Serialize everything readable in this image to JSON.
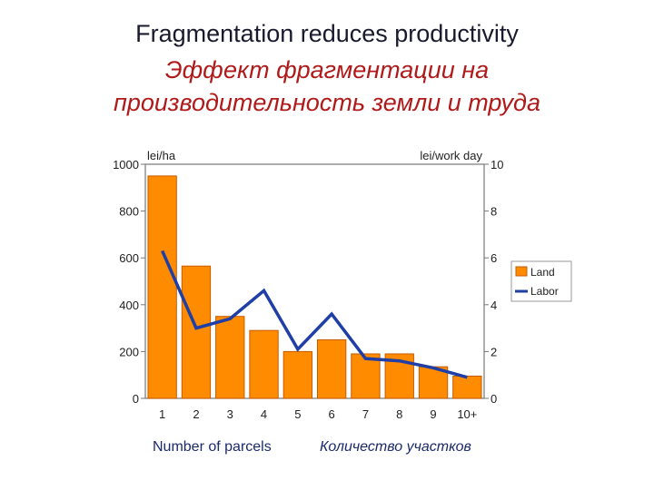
{
  "title": {
    "en": "Fragmentation reduces productivity",
    "ru_line1": "Эффект фрагментации на",
    "ru_line2": "производительность земли и труда"
  },
  "chart_data": {
    "type": "bar",
    "categories": [
      "1",
      "2",
      "3",
      "4",
      "5",
      "6",
      "7",
      "8",
      "9",
      "10+"
    ],
    "series": [
      {
        "name": "Land",
        "kind": "bar",
        "axis": "left",
        "color": "#ff8c00",
        "values": [
          950,
          565,
          350,
          290,
          200,
          250,
          190,
          190,
          135,
          95
        ]
      },
      {
        "name": "Labor",
        "kind": "line",
        "axis": "right",
        "color": "#1f3fa6",
        "values": [
          6.3,
          3.0,
          3.4,
          4.6,
          2.1,
          3.6,
          1.7,
          1.6,
          1.3,
          0.9
        ]
      }
    ],
    "ylabel_left": "lei/ha",
    "ylabel_right": "lei/work day",
    "ylim_left": [
      0,
      1000
    ],
    "ylim_right": [
      0,
      10
    ],
    "yticks_left": [
      0,
      200,
      400,
      600,
      800,
      1000
    ],
    "yticks_right": [
      0,
      2,
      4,
      6,
      8,
      10
    ],
    "xlabel_en": "Number of parcels",
    "xlabel_ru": "Количество участков",
    "legend": [
      "Land",
      "Labor"
    ],
    "legend_position": "right",
    "grid": false
  }
}
